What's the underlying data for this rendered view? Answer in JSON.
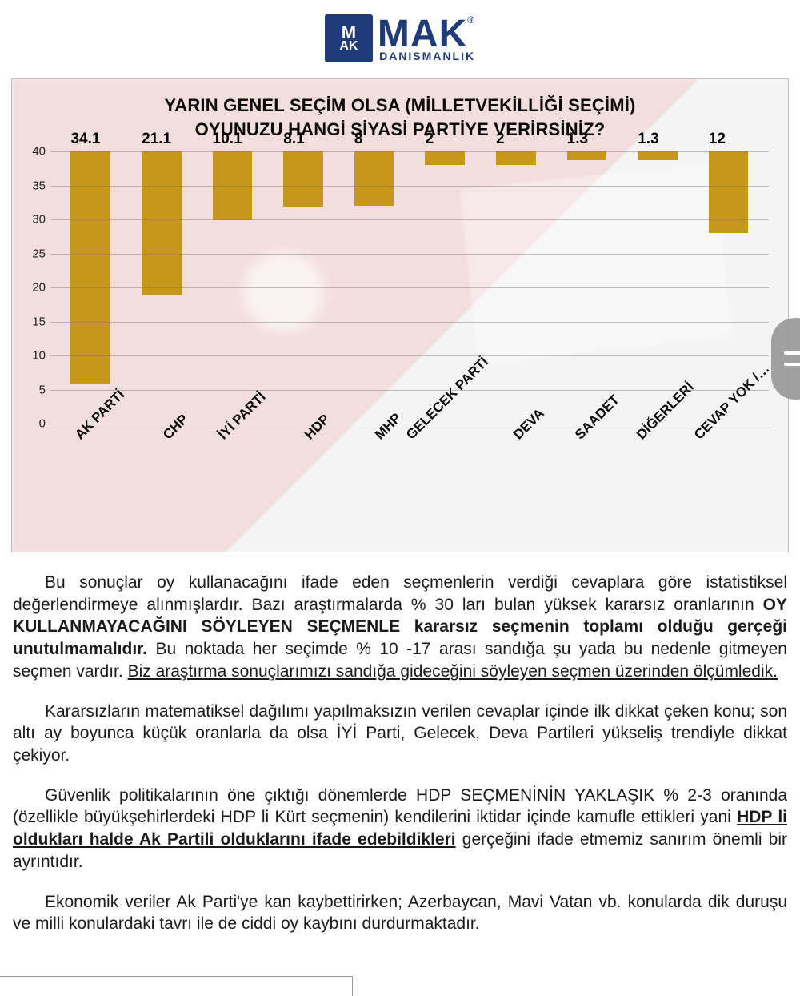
{
  "logo": {
    "mark_top": "M",
    "mark_bottom": "AK",
    "main": "MAK",
    "reg": "®",
    "sub": "DANISMANLIK",
    "mark_bg": "#1f3b78",
    "text_color": "#1f3b78"
  },
  "chart": {
    "type": "bar",
    "title_line1": "YARIN GENEL SEÇİM OLSA (MİLLETVEKİLLİĞİ SEÇİMİ)",
    "title_line2": "OYUNUZU HANGİ SİYASİ PARTİYE VERİRSİNİZ?",
    "title_fontsize": 22,
    "title_fontweight": "900",
    "categories": [
      "AK PARTİ",
      "CHP",
      "İYİ PARTİ",
      "HDP",
      "MHP",
      "GELECEK PARTİ",
      "DEVA",
      "SAADET",
      "DİĞERLERİ",
      "CEVAP YOK /…"
    ],
    "values": [
      34.1,
      21.1,
      10.1,
      8.1,
      8,
      2,
      2,
      1.3,
      1.3,
      12
    ],
    "value_labels": [
      "34.1",
      "21.1",
      "10.1",
      "8.1",
      "8",
      "2",
      "2",
      "1.3",
      "1.3",
      "12"
    ],
    "bar_color": "#c7971b",
    "ylim": [
      0,
      40
    ],
    "ytick_step": 5,
    "yticks": [
      0,
      5,
      10,
      15,
      20,
      25,
      30,
      35,
      40
    ],
    "axis_label_fontsize": 15,
    "value_label_fontsize": 19,
    "value_label_fontweight": "900",
    "category_label_fontsize": 17,
    "category_label_fontweight": "900",
    "category_label_rotation_deg": -45,
    "grid_color": "rgba(120,120,120,0.45)",
    "background_color": "#fbfbfb",
    "border_color": "#bcbcbc",
    "bar_width_ratio": 0.56,
    "bg_overlay": {
      "flag_tint": "rgba(196,42,42,0.25)",
      "box_tint": "rgba(200,200,200,0.25)",
      "opacity": 0.55
    }
  },
  "side_tab": {
    "bg": "#999999",
    "line_color": "#ffffff"
  },
  "text": {
    "p1_a": "Bu sonuçlar oy kullanacağını ifade eden seçmenlerin verdiği cevaplara göre istatistiksel değerlendirmeye alınmışlardır. Bazı araştırmalarda % 30 ları bulan yüksek kararsız oranlarının ",
    "p1_bold": "OY KULLANMAYACAĞINI SÖYLEYEN SEÇMENLE kararsız seçmenin toplamı olduğu gerçeği unutulmamalıdır.",
    "p1_b": " Bu noktada her seçimde % 10 -17 arası sandığa şu yada bu nedenle gitmeyen seçmen vardır. ",
    "p1_und": "Biz araştırma sonuçlarımızı sandığa gideceğini söyleyen seçmen üzerinden ölçümledik.",
    "p2": "Kararsızların matematiksel dağılımı yapılmaksızın verilen cevaplar içinde ilk dikkat çeken konu; son altı ay boyunca küçük oranlarla da olsa İYİ Parti, Gelecek, Deva Partileri yükseliş trendiyle dikkat çekiyor.",
    "p3_a": "Güvenlik politikalarının öne çıktığı dönemlerde HDP SEÇMENİNİN YAKLAŞIK % 2-3 oranında (özellikle büyükşehirlerdeki HDP li Kürt seçmenin) kendilerini iktidar içinde kamufle ettikleri yani ",
    "p3_und": "HDP li oldukları halde Ak Partili olduklarını ifade edebildikleri",
    "p3_b": " gerçeğini ifade etmemiz sanırım önemli bir ayrıntıdır.",
    "p4": "Ekonomik veriler Ak Parti'ye kan kaybettirirken; Azerbaycan, Mavi Vatan vb. konularda dik duruşu ve milli konulardaki tavrı ile de ciddi oy kaybını durdurmaktadır.",
    "fontsize": 21,
    "color": "#1a1a1a"
  }
}
